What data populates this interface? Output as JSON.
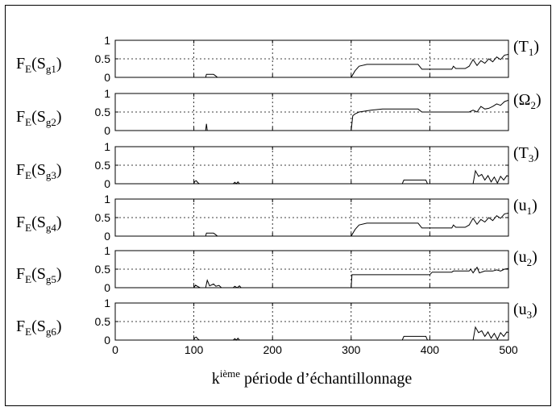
{
  "chart_data": {
    "type": "line",
    "xlabel": {
      "base": "k",
      "sup": "ième",
      "rest": " période d’échantillonnage"
    },
    "xlim": [
      0,
      500
    ],
    "ylim": [
      0,
      1
    ],
    "x_ticks": [
      0,
      100,
      200,
      300,
      400,
      500
    ],
    "y_ticks": [
      0,
      0.5,
      1
    ],
    "y_tick_labels": [
      "0",
      "0.5",
      "1"
    ],
    "grid": true,
    "panels": [
      {
        "ylabel": {
          "base": "F",
          "sub1": "E",
          "mid": "(S",
          "sub2": "g1",
          "end": ")"
        },
        "right_label": {
          "pre": "(T",
          "sub": "1",
          "post": ")"
        },
        "points": [
          [
            0,
            0
          ],
          [
            115,
            0
          ],
          [
            116,
            0.08
          ],
          [
            125,
            0.08
          ],
          [
            127,
            0.05
          ],
          [
            130,
            0
          ],
          [
            300,
            0
          ],
          [
            305,
            0.18
          ],
          [
            310,
            0.3
          ],
          [
            320,
            0.35
          ],
          [
            385,
            0.35
          ],
          [
            390,
            0.22
          ],
          [
            400,
            0.22
          ],
          [
            428,
            0.22
          ],
          [
            430,
            0.3
          ],
          [
            433,
            0.24
          ],
          [
            445,
            0.24
          ],
          [
            450,
            0.3
          ],
          [
            455,
            0.48
          ],
          [
            460,
            0.32
          ],
          [
            465,
            0.45
          ],
          [
            470,
            0.38
          ],
          [
            475,
            0.5
          ],
          [
            480,
            0.42
          ],
          [
            485,
            0.55
          ],
          [
            490,
            0.48
          ],
          [
            495,
            0.6
          ],
          [
            500,
            0.62
          ]
        ]
      },
      {
        "ylabel": {
          "base": "F",
          "sub1": "E",
          "mid": "(S",
          "sub2": "g2",
          "end": ")"
        },
        "right_label": {
          "pre": "(Ω",
          "sub": "2",
          "post": ")"
        },
        "points": [
          [
            0,
            0
          ],
          [
            115,
            0
          ],
          [
            116,
            0.18
          ],
          [
            117,
            0
          ],
          [
            300,
            0
          ],
          [
            302,
            0.4
          ],
          [
            305,
            0.45
          ],
          [
            310,
            0.5
          ],
          [
            325,
            0.55
          ],
          [
            340,
            0.58
          ],
          [
            385,
            0.58
          ],
          [
            390,
            0.5
          ],
          [
            450,
            0.5
          ],
          [
            455,
            0.55
          ],
          [
            460,
            0.5
          ],
          [
            465,
            0.65
          ],
          [
            470,
            0.58
          ],
          [
            475,
            0.6
          ],
          [
            480,
            0.65
          ],
          [
            485,
            0.72
          ],
          [
            490,
            0.68
          ],
          [
            495,
            0.78
          ],
          [
            500,
            0.82
          ]
        ]
      },
      {
        "ylabel": {
          "base": "F",
          "sub1": "E",
          "mid": "(S",
          "sub2": "g3",
          "end": ")"
        },
        "right_label": {
          "pre": "(T",
          "sub": "3",
          "post": ")"
        },
        "points": [
          [
            0,
            0
          ],
          [
            100,
            0
          ],
          [
            101,
            0.06
          ],
          [
            103,
            0.08
          ],
          [
            105,
            0.03
          ],
          [
            107,
            0
          ],
          [
            150,
            0
          ],
          [
            152,
            0.04
          ],
          [
            154,
            0
          ],
          [
            156,
            0.05
          ],
          [
            158,
            0
          ],
          [
            365,
            0
          ],
          [
            367,
            0.1
          ],
          [
            395,
            0.1
          ],
          [
            397,
            0
          ],
          [
            455,
            0
          ],
          [
            458,
            0.35
          ],
          [
            462,
            0.2
          ],
          [
            466,
            0.25
          ],
          [
            470,
            0.1
          ],
          [
            474,
            0.22
          ],
          [
            478,
            0.05
          ],
          [
            482,
            0.18
          ],
          [
            486,
            0.02
          ],
          [
            490,
            0.2
          ],
          [
            494,
            0.1
          ],
          [
            498,
            0.22
          ],
          [
            500,
            0.2
          ]
        ]
      },
      {
        "ylabel": {
          "base": "F",
          "sub1": "E",
          "mid": "(S",
          "sub2": "g4",
          "end": ")"
        },
        "right_label": {
          "pre": "(u",
          "sub": "1",
          "post": ")"
        },
        "points": [
          [
            0,
            0
          ],
          [
            115,
            0
          ],
          [
            116,
            0.08
          ],
          [
            125,
            0.08
          ],
          [
            127,
            0.05
          ],
          [
            130,
            0
          ],
          [
            300,
            0
          ],
          [
            305,
            0.18
          ],
          [
            310,
            0.3
          ],
          [
            320,
            0.35
          ],
          [
            385,
            0.35
          ],
          [
            390,
            0.22
          ],
          [
            400,
            0.22
          ],
          [
            428,
            0.22
          ],
          [
            430,
            0.3
          ],
          [
            433,
            0.24
          ],
          [
            445,
            0.24
          ],
          [
            450,
            0.3
          ],
          [
            455,
            0.48
          ],
          [
            460,
            0.32
          ],
          [
            465,
            0.45
          ],
          [
            470,
            0.38
          ],
          [
            475,
            0.5
          ],
          [
            480,
            0.42
          ],
          [
            485,
            0.55
          ],
          [
            490,
            0.48
          ],
          [
            495,
            0.6
          ],
          [
            500,
            0.62
          ]
        ]
      },
      {
        "ylabel": {
          "base": "F",
          "sub1": "E",
          "mid": "(S",
          "sub2": "g5",
          "end": ")"
        },
        "right_label": {
          "pre": "(u",
          "sub": "2",
          "post": ")"
        },
        "points": [
          [
            0,
            0
          ],
          [
            100,
            0
          ],
          [
            102,
            0.07
          ],
          [
            105,
            0.03
          ],
          [
            108,
            0
          ],
          [
            115,
            0
          ],
          [
            117,
            0.2
          ],
          [
            120,
            0.05
          ],
          [
            125,
            0.1
          ],
          [
            128,
            0.04
          ],
          [
            132,
            0.06
          ],
          [
            135,
            0
          ],
          [
            150,
            0
          ],
          [
            152,
            0.04
          ],
          [
            155,
            0
          ],
          [
            158,
            0.05
          ],
          [
            160,
            0
          ],
          [
            300,
            0
          ],
          [
            301,
            0.35
          ],
          [
            400,
            0.35
          ],
          [
            403,
            0.42
          ],
          [
            428,
            0.42
          ],
          [
            430,
            0.45
          ],
          [
            450,
            0.45
          ],
          [
            452,
            0.5
          ],
          [
            455,
            0.4
          ],
          [
            460,
            0.55
          ],
          [
            463,
            0.4
          ],
          [
            470,
            0.45
          ],
          [
            480,
            0.45
          ],
          [
            485,
            0.48
          ],
          [
            490,
            0.45
          ],
          [
            495,
            0.5
          ],
          [
            500,
            0.52
          ]
        ]
      },
      {
        "ylabel": {
          "base": "F",
          "sub1": "E",
          "mid": "(S",
          "sub2": "g6",
          "end": ")"
        },
        "right_label": {
          "pre": "(u",
          "sub": "3",
          "post": ")"
        },
        "points": [
          [
            0,
            0
          ],
          [
            100,
            0
          ],
          [
            101,
            0.06
          ],
          [
            103,
            0.08
          ],
          [
            105,
            0.03
          ],
          [
            107,
            0
          ],
          [
            150,
            0
          ],
          [
            152,
            0.04
          ],
          [
            154,
            0
          ],
          [
            156,
            0.05
          ],
          [
            158,
            0
          ],
          [
            365,
            0
          ],
          [
            367,
            0.1
          ],
          [
            395,
            0.1
          ],
          [
            397,
            0
          ],
          [
            455,
            0
          ],
          [
            458,
            0.35
          ],
          [
            462,
            0.2
          ],
          [
            466,
            0.25
          ],
          [
            470,
            0.1
          ],
          [
            474,
            0.22
          ],
          [
            478,
            0.05
          ],
          [
            482,
            0.18
          ],
          [
            486,
            0.02
          ],
          [
            490,
            0.2
          ],
          [
            494,
            0.1
          ],
          [
            498,
            0.22
          ],
          [
            500,
            0.2
          ]
        ]
      }
    ]
  }
}
